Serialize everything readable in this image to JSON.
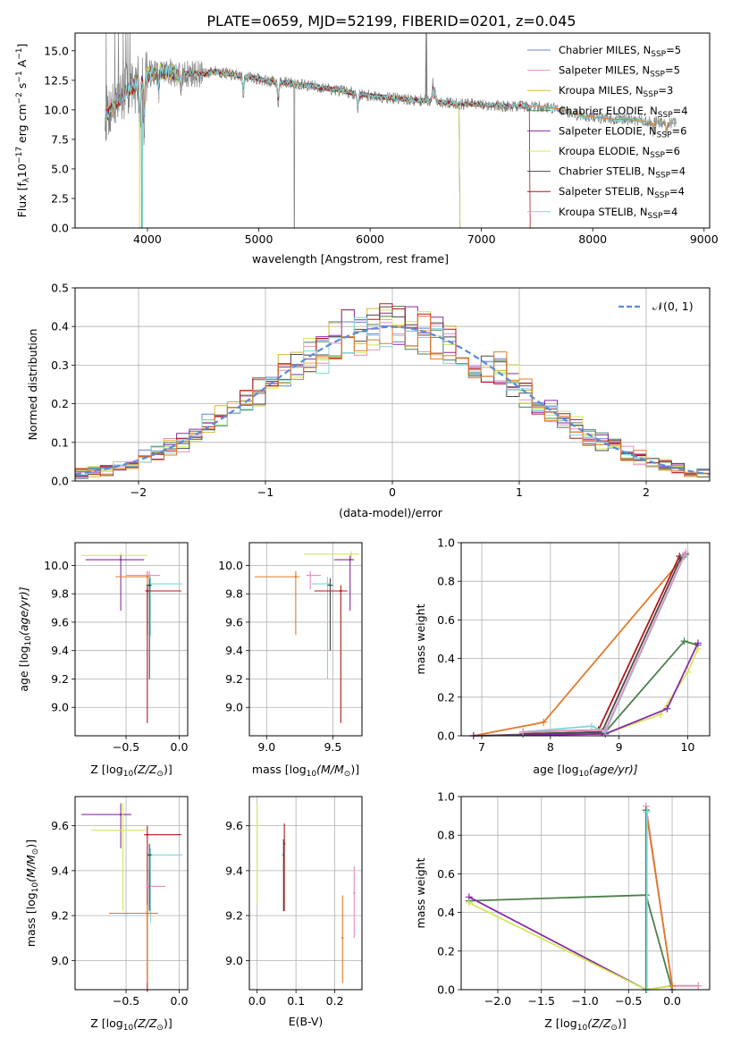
{
  "figure": {
    "title": "PLATE=0659, MJD=52199, FIBERID=0201, z=0.045"
  },
  "colors": {
    "chabrier_miles": "#6f7fd8",
    "salpeter_miles": "#e68fc2",
    "kroupa_miles": "#d9b43a",
    "chabrier_elodie": "#4c7f4c",
    "salpeter_elodie": "#8a2aa6",
    "kroupa_elodie": "#d4e85a",
    "chabrier_stelib": "#4a4a4a",
    "salpeter_stelib": "#b01818",
    "kroupa_stelib": "#7fd6d9",
    "gaussian": "#5b8bd6",
    "orange": "#e07b28",
    "data": "#808080"
  },
  "chart_data": [
    {
      "id": "spectrum",
      "type": "line",
      "xlabel": "wavelength [Angstrom, rest frame]",
      "ylabel": "Flux [f",
      "ylabel_parts": [
        "Flux [f",
        "λ",
        "10",
        "−17",
        " erg cm",
        "−2",
        " s",
        "−1",
        " A",
        "−1",
        "]"
      ],
      "xlim": [
        3350,
        9050
      ],
      "ylim": [
        0,
        16.5
      ],
      "xticks": [
        4000,
        5000,
        6000,
        7000,
        8000,
        9000
      ],
      "yticks": [
        0.0,
        2.5,
        5.0,
        7.5,
        10.0,
        12.5,
        15.0
      ],
      "ytick_labels": [
        "0.0",
        "2.5",
        "5.0",
        "7.5",
        "10.0",
        "12.5",
        "15.0"
      ],
      "legend_position": "top-right",
      "legend": [
        {
          "label": "Chabrier MILES, N",
          "sub": "SSP",
          "eq": "=5",
          "color_key": "chabrier_miles"
        },
        {
          "label": "Salpeter MILES, N",
          "sub": "SSP",
          "eq": "=5",
          "color_key": "salpeter_miles"
        },
        {
          "label": "Kroupa MILES, N",
          "sub": "SSP",
          "eq": "=3",
          "color_key": "kroupa_miles"
        },
        {
          "label": "Chabrier ELODIE, N",
          "sub": "SSP",
          "eq": "=4",
          "color_key": "chabrier_elodie"
        },
        {
          "label": "Salpeter ELODIE, N",
          "sub": "SSP",
          "eq": "=6",
          "color_key": "salpeter_elodie"
        },
        {
          "label": "Kroupa ELODIE, N",
          "sub": "SSP",
          "eq": "=6",
          "color_key": "kroupa_elodie"
        },
        {
          "label": "Chabrier STELIB, N",
          "sub": "SSP",
          "eq": "=4",
          "color_key": "chabrier_stelib"
        },
        {
          "label": "Salpeter STELIB, N",
          "sub": "SSP",
          "eq": "=4",
          "color_key": "salpeter_stelib"
        },
        {
          "label": "Kroupa STELIB, N",
          "sub": "SSP",
          "eq": "=4",
          "color_key": "kroupa_stelib"
        }
      ],
      "continuum": [
        [
          3620,
          9.5
        ],
        [
          3700,
          10.5
        ],
        [
          3800,
          11.5
        ],
        [
          3900,
          12.2
        ],
        [
          4000,
          13.0
        ],
        [
          4100,
          13.3
        ],
        [
          4200,
          13.2
        ],
        [
          4300,
          13.0
        ],
        [
          4400,
          13.1
        ],
        [
          4500,
          13.0
        ],
        [
          4600,
          13.3
        ],
        [
          4700,
          13.1
        ],
        [
          4800,
          12.9
        ],
        [
          4900,
          12.8
        ],
        [
          5000,
          12.6
        ],
        [
          5100,
          12.4
        ],
        [
          5200,
          12.3
        ],
        [
          5300,
          12.3
        ],
        [
          5400,
          12.1
        ],
        [
          5500,
          12.0
        ],
        [
          5600,
          11.8
        ],
        [
          5700,
          11.7
        ],
        [
          5800,
          11.5
        ],
        [
          5900,
          11.3
        ],
        [
          6000,
          11.2
        ],
        [
          6100,
          11.1
        ],
        [
          6200,
          11.0
        ],
        [
          6300,
          10.9
        ],
        [
          6400,
          10.8
        ],
        [
          6500,
          10.8
        ],
        [
          6600,
          10.7
        ],
        [
          6700,
          10.6
        ],
        [
          6800,
          10.5
        ],
        [
          6900,
          10.5
        ],
        [
          7000,
          10.4
        ],
        [
          7100,
          10.4
        ],
        [
          7200,
          10.3
        ],
        [
          7300,
          10.3
        ],
        [
          7400,
          10.3
        ],
        [
          7500,
          10.3
        ],
        [
          7600,
          10.2
        ],
        [
          7700,
          10.1
        ],
        [
          7800,
          9.7
        ],
        [
          7900,
          9.5
        ],
        [
          8000,
          9.4
        ],
        [
          8100,
          9.3
        ],
        [
          8200,
          9.2
        ],
        [
          8300,
          9.2
        ],
        [
          8400,
          9.1
        ],
        [
          8500,
          9.0
        ],
        [
          8600,
          9.0
        ],
        [
          8700,
          8.9
        ],
        [
          8750,
          8.9
        ]
      ]
    },
    {
      "id": "residual-hist",
      "type": "bar",
      "xlabel": "(data-model)/error",
      "ylabel": "Normed distribution",
      "xlim": [
        -2.5,
        2.5
      ],
      "ylim": [
        0,
        0.5
      ],
      "xticks": [
        -2,
        -1,
        0,
        1,
        2
      ],
      "xtick_labels": [
        "−2",
        "−1",
        "0",
        "1",
        "2"
      ],
      "yticks": [
        0.0,
        0.1,
        0.2,
        0.3,
        0.4,
        0.5
      ],
      "ytick_labels": [
        "0.0",
        "0.1",
        "0.2",
        "0.3",
        "0.4",
        "0.5"
      ],
      "bin_width": 0.1,
      "bin_start": -2.5,
      "legend": [
        {
          "label": "𝒩(0, 1)",
          "color_key": "gaussian",
          "dashed": true
        }
      ],
      "legend_position": "top-right"
    },
    {
      "id": "age-vs-z",
      "type": "scatter",
      "xlabel": "Z [log",
      "xlabel_parts": [
        "Z [log",
        "10",
        "(Z/Z",
        "⊙",
        ")]"
      ],
      "ylabel_parts": [
        "age  [log",
        "10",
        "(age/yr)]"
      ],
      "xlim": [
        -0.98,
        0.08
      ],
      "ylim": [
        8.8,
        10.16
      ],
      "xticks": [
        -0.5,
        0.0
      ],
      "xtick_labels": [
        "−0.5",
        "0.0"
      ],
      "yticks": [
        9.0,
        9.2,
        9.4,
        9.6,
        9.8,
        10.0
      ],
      "ytick_labels": [
        "9.0",
        "9.2",
        "9.4",
        "9.6",
        "9.8",
        "10.0"
      ],
      "points": [
        {
          "x": -0.55,
          "y": 10.07,
          "xerr": [
            0.37,
            0.25
          ],
          "yerr": [
            0.04,
            0.02
          ],
          "color_key": "kroupa_elodie"
        },
        {
          "x": -0.55,
          "y": 10.04,
          "xerr": [
            0.33,
            0.22
          ],
          "yerr": [
            0.36,
            0.03
          ],
          "color_key": "salpeter_elodie"
        },
        {
          "x": -0.3,
          "y": 9.92,
          "xerr": [
            0.3,
            0.03
          ],
          "yerr": [
            0.41,
            0.04
          ],
          "color_key": "orange"
        },
        {
          "x": -0.28,
          "y": 9.93,
          "xerr": [
            0.22,
            0.1
          ],
          "yerr": [
            0.1,
            0.03
          ],
          "color_key": "salpeter_miles"
        },
        {
          "x": -0.27,
          "y": 9.87,
          "xerr": [
            0.02,
            0.3
          ],
          "yerr": [
            0.37,
            0.05
          ],
          "color_key": "kroupa_stelib"
        },
        {
          "x": -0.3,
          "y": 9.82,
          "xerr": [
            0.02,
            0.32
          ],
          "yerr": [
            0.93,
            0.04
          ],
          "color_key": "salpeter_stelib"
        },
        {
          "x": -0.28,
          "y": 9.86,
          "xerr": [
            0.03,
            0.02
          ],
          "yerr": [
            0.66,
            0.05
          ],
          "color_key": "chabrier_stelib"
        }
      ]
    },
    {
      "id": "age-vs-mass",
      "type": "scatter",
      "xlabel_parts": [
        "mass [log",
        "10",
        "(M/M",
        "⊙",
        ")]"
      ],
      "xlim": [
        8.87,
        9.72
      ],
      "ylim": [
        8.8,
        10.16
      ],
      "xticks": [
        9.0,
        9.5
      ],
      "xtick_labels": [
        "9.0",
        "9.5"
      ],
      "yticks": [
        9.0,
        9.2,
        9.4,
        9.6,
        9.8,
        10.0
      ],
      "ytick_labels": [
        "9.0",
        "9.2",
        "9.4",
        "9.6",
        "9.8",
        "10.0"
      ],
      "points": [
        {
          "x": 9.64,
          "y": 10.08,
          "xerr": [
            0.36,
            0.06
          ],
          "yerr": [
            0.04,
            0.02
          ],
          "color_key": "kroupa_elodie"
        },
        {
          "x": 9.63,
          "y": 10.04,
          "xerr": [
            0.12,
            0.03
          ],
          "yerr": [
            0.36,
            0.03
          ],
          "color_key": "salpeter_elodie"
        },
        {
          "x": 9.22,
          "y": 9.92,
          "xerr": [
            0.31,
            0.03
          ],
          "yerr": [
            0.41,
            0.04
          ],
          "color_key": "orange"
        },
        {
          "x": 9.33,
          "y": 9.93,
          "xerr": [
            0.03,
            0.08
          ],
          "yerr": [
            0.1,
            0.03
          ],
          "color_key": "salpeter_miles"
        },
        {
          "x": 9.46,
          "y": 9.87,
          "xerr": [
            0.12,
            0.02
          ],
          "yerr": [
            0.67,
            0.05
          ],
          "color_key": "kroupa_stelib"
        },
        {
          "x": 9.56,
          "y": 9.82,
          "xerr": [
            0.2,
            0.05
          ],
          "yerr": [
            0.93,
            0.04
          ],
          "color_key": "salpeter_stelib"
        },
        {
          "x": 9.48,
          "y": 9.86,
          "xerr": [
            0.02,
            0.02
          ],
          "yerr": [
            0.46,
            0.05
          ],
          "color_key": "chabrier_stelib"
        }
      ]
    },
    {
      "id": "weight-vs-age",
      "type": "line",
      "xlabel_parts": [
        "age  [log",
        "10",
        "(age/yr)]"
      ],
      "ylabel": "mass weight",
      "xlim": [
        6.7,
        10.32
      ],
      "ylim": [
        0,
        1.0
      ],
      "xticks": [
        7,
        8,
        9,
        10
      ],
      "yticks": [
        0.0,
        0.2,
        0.4,
        0.6,
        0.8,
        1.0
      ],
      "ytick_labels": [
        "0.0",
        "0.2",
        "0.4",
        "0.6",
        "0.8",
        "1.0"
      ],
      "series": [
        {
          "color_key": "orange",
          "x": [
            6.88,
            7.9,
            9.95
          ],
          "y": [
            0.0,
            0.07,
            0.93
          ]
        },
        {
          "color_key": "chabrier_elodie",
          "x": [
            6.88,
            8.8,
            9.95,
            10.15
          ],
          "y": [
            0.0,
            0.02,
            0.49,
            0.47
          ]
        },
        {
          "color_key": "kroupa_elodie",
          "x": [
            6.88,
            8.8,
            9.6,
            10.0,
            10.15
          ],
          "y": [
            0.0,
            0.01,
            0.11,
            0.33,
            0.45
          ]
        },
        {
          "color_key": "salpeter_elodie",
          "x": [
            6.88,
            8.8,
            9.7,
            10.15
          ],
          "y": [
            0.0,
            0.01,
            0.14,
            0.48
          ]
        },
        {
          "color_key": "salpeter_stelib",
          "x": [
            7.6,
            8.7,
            9.88,
            9.95
          ],
          "y": [
            0.02,
            0.03,
            0.93,
            0.93
          ]
        },
        {
          "color_key": "chabrier_stelib",
          "x": [
            7.6,
            8.75,
            9.9,
            9.97
          ],
          "y": [
            0.01,
            0.02,
            0.92,
            0.94
          ]
        },
        {
          "color_key": "kroupa_stelib",
          "x": [
            7.6,
            8.6,
            8.8,
            9.95
          ],
          "y": [
            0.02,
            0.05,
            0.02,
            0.93
          ]
        },
        {
          "color_key": "salpeter_miles",
          "x": [
            7.6,
            8.8,
            9.97
          ],
          "y": [
            0.02,
            0.03,
            0.95
          ]
        }
      ]
    },
    {
      "id": "mass-vs-z",
      "type": "scatter",
      "xlabel_parts": [
        "Z [log",
        "10",
        "(Z/Z",
        "⊙",
        ")]"
      ],
      "ylabel_parts": [
        "mass [log",
        "10",
        "(M/M",
        "⊙",
        ")]"
      ],
      "xlim": [
        -0.98,
        0.08
      ],
      "ylim": [
        8.87,
        9.73
      ],
      "xticks": [
        -0.5,
        0.0
      ],
      "xtick_labels": [
        "−0.5",
        "0.0"
      ],
      "yticks": [
        9.0,
        9.2,
        9.4,
        9.6
      ],
      "ytick_labels": [
        "9.0",
        "9.2",
        "9.4",
        "9.6"
      ],
      "points": [
        {
          "x": -0.55,
          "y": 9.65,
          "xerr": [
            0.37,
            0.1
          ],
          "yerr": [
            0.15,
            0.05
          ],
          "color_key": "salpeter_elodie"
        },
        {
          "x": -0.53,
          "y": 9.58,
          "xerr": [
            0.3,
            0.22
          ],
          "yerr": [
            0.36,
            0.12
          ],
          "color_key": "kroupa_elodie"
        },
        {
          "x": -0.3,
          "y": 9.56,
          "xerr": [
            0.03,
            0.32
          ],
          "yerr": [
            0.7,
            0.04
          ],
          "color_key": "salpeter_stelib"
        },
        {
          "x": -0.27,
          "y": 9.47,
          "xerr": [
            0.03,
            0.3
          ],
          "yerr": [
            0.3,
            0.03
          ],
          "color_key": "kroupa_stelib"
        },
        {
          "x": -0.28,
          "y": 9.33,
          "xerr": [
            0.03,
            0.15
          ],
          "yerr": [
            0.1,
            0.08
          ],
          "color_key": "salpeter_miles"
        },
        {
          "x": -0.3,
          "y": 9.21,
          "xerr": [
            0.36,
            0.1
          ],
          "yerr": [
            0.31,
            0.04
          ],
          "color_key": "orange"
        },
        {
          "x": -0.28,
          "y": 9.47,
          "xerr": [
            0.02,
            0.02
          ],
          "yerr": [
            0.25,
            0.05
          ],
          "color_key": "chabrier_stelib"
        }
      ]
    },
    {
      "id": "mass-vs-ebv",
      "type": "scatter",
      "xlabel": "E(B-V)",
      "xlim": [
        -0.02,
        0.27
      ],
      "ylim": [
        8.87,
        9.73
      ],
      "xticks": [
        0.0,
        0.1,
        0.2
      ],
      "xtick_labels": [
        "0.0",
        "0.1",
        "0.2"
      ],
      "yticks": [
        9.0,
        9.2,
        9.4,
        9.6
      ],
      "ytick_labels": [
        "9.0",
        "9.2",
        "9.4",
        "9.6"
      ],
      "points": [
        {
          "x": 0.0,
          "y": 9.6,
          "yerr": [
            0.35,
            0.1
          ],
          "color_key": "kroupa_elodie"
        },
        {
          "x": 0.07,
          "y": 9.52,
          "yerr": [
            0.3,
            0.09
          ],
          "color_key": "salpeter_stelib"
        },
        {
          "x": 0.068,
          "y": 9.47,
          "yerr": [
            0.25,
            0.07
          ],
          "color_key": "chabrier_stelib"
        },
        {
          "x": 0.22,
          "y": 9.1,
          "yerr": [
            0.2,
            0.19
          ],
          "color_key": "orange"
        },
        {
          "x": 0.25,
          "y": 9.3,
          "yerr": [
            0.2,
            0.12
          ],
          "color_key": "salpeter_miles"
        }
      ]
    },
    {
      "id": "weight-vs-z",
      "type": "line",
      "xlabel_parts": [
        "Z [log",
        "10",
        "(Z/Z",
        "⊙",
        ")]"
      ],
      "ylabel": "mass weight",
      "xlim": [
        -2.42,
        0.43
      ],
      "ylim": [
        0,
        1.0
      ],
      "xticks": [
        -2.0,
        -1.5,
        -1.0,
        -0.5,
        0.0
      ],
      "xtick_labels": [
        "−2.0",
        "−1.5",
        "−1.0",
        "−0.5",
        "0.0"
      ],
      "yticks": [
        0.0,
        0.2,
        0.4,
        0.6,
        0.8,
        1.0
      ],
      "ytick_labels": [
        "0.0",
        "0.2",
        "0.4",
        "0.6",
        "0.8",
        "1.0"
      ],
      "series": [
        {
          "color_key": "chabrier_elodie",
          "x": [
            -2.33,
            -0.3,
            0.0
          ],
          "y": [
            0.46,
            0.49,
            0.0
          ]
        },
        {
          "color_key": "salpeter_elodie",
          "x": [
            -2.33,
            -0.3,
            0.0
          ],
          "y": [
            0.48,
            0.0,
            0.02
          ]
        },
        {
          "color_key": "kroupa_elodie",
          "x": [
            -2.33,
            -0.3,
            0.0,
            0.3
          ],
          "y": [
            0.45,
            0.0,
            0.02,
            0.02
          ]
        },
        {
          "color_key": "salpeter_miles",
          "x": [
            -0.3,
            0.0,
            0.3
          ],
          "y": [
            0.95,
            0.02,
            0.02
          ]
        },
        {
          "color_key": "orange",
          "x": [
            -0.3,
            0.0
          ],
          "y": [
            0.93,
            0.02
          ]
        },
        {
          "color_key": "chabrier_elodie",
          "x": [
            -0.3,
            -0.3
          ],
          "y": [
            0.0,
            0.93
          ]
        },
        {
          "color_key": "kroupa_stelib",
          "x": [
            -0.29,
            -0.29
          ],
          "y": [
            0.0,
            0.92
          ]
        }
      ]
    }
  ]
}
